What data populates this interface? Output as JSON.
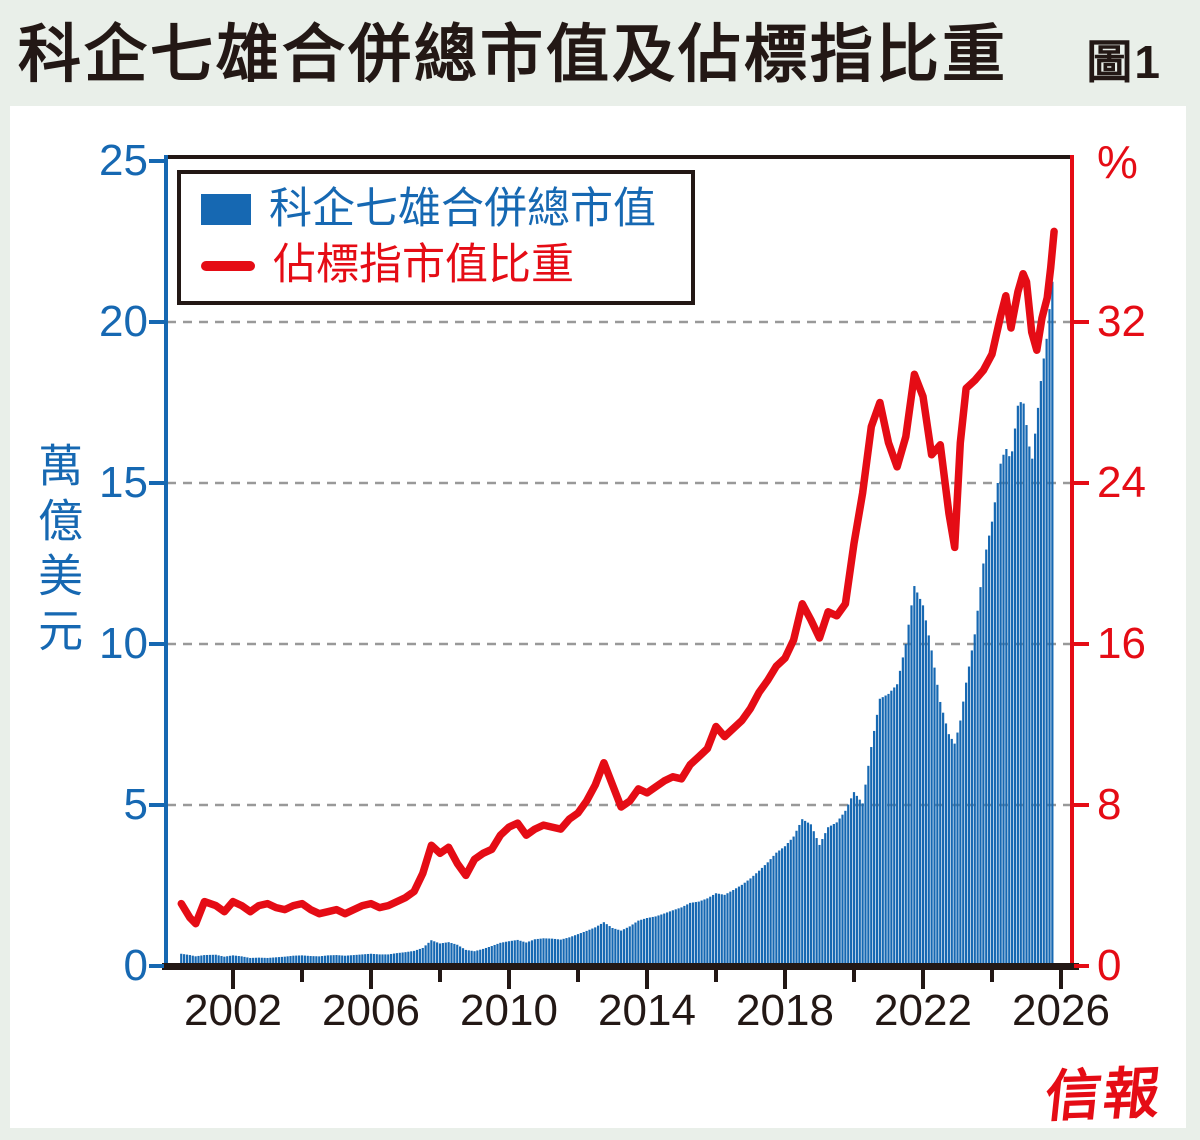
{
  "page": {
    "figure_label": "圖1",
    "brand": "信報",
    "background": "#e9efe9",
    "ink": "#231815"
  },
  "chart_data": {
    "type": "bar+line",
    "title": "科企七雄合併總市值及佔標指比重",
    "grid": "dashed-horizontal",
    "grid_color": "#999999",
    "legend_position": "top-left-inside",
    "legend": [
      {
        "label": "科企七雄合併總市值",
        "type": "bar",
        "color": "#1668b2"
      },
      {
        "label": "佔標指市值比重",
        "type": "line",
        "color": "#e50c15"
      }
    ],
    "left_axis": {
      "label": "萬億美元",
      "color": "#1668b2",
      "min": 0,
      "max": 25,
      "tick_values": [
        0,
        5,
        10,
        15,
        20,
        25
      ],
      "tick_labels": [
        "25",
        "20",
        "15",
        "10",
        "5",
        "0"
      ]
    },
    "right_axis": {
      "unit": "%",
      "color": "#e50c15",
      "min": 0,
      "max": 40,
      "tick_values": [
        0,
        8,
        16,
        24,
        32
      ],
      "tick_labels": [
        "32",
        "24",
        "16",
        "8",
        "0"
      ]
    },
    "x_axis": {
      "color": "#231815",
      "range": [
        2000.1,
        2026.8
      ],
      "tick_step_years": 2,
      "labels": [
        "2002",
        "2006",
        "2010",
        "2014",
        "2018",
        "2022",
        "2026"
      ],
      "label_years": [
        2002,
        2006,
        2010,
        2014,
        2018,
        2022,
        2026
      ]
    },
    "series": {
      "x": [
        2000.5,
        2000.75,
        2000.92,
        2001.17,
        2001.5,
        2001.75,
        2002,
        2002.25,
        2002.5,
        2002.75,
        2003,
        2003.25,
        2003.5,
        2003.75,
        2004,
        2004.25,
        2004.5,
        2004.75,
        2005,
        2005.25,
        2005.5,
        2005.75,
        2006,
        2006.25,
        2006.5,
        2006.75,
        2007,
        2007.25,
        2007.5,
        2007.75,
        2008,
        2008.25,
        2008.5,
        2008.75,
        2009,
        2009.25,
        2009.5,
        2009.75,
        2010,
        2010.25,
        2010.5,
        2010.75,
        2011,
        2011.25,
        2011.5,
        2011.75,
        2012,
        2012.25,
        2012.5,
        2012.75,
        2013,
        2013.25,
        2013.5,
        2013.75,
        2014,
        2014.25,
        2014.5,
        2014.75,
        2015,
        2015.25,
        2015.5,
        2015.75,
        2016,
        2016.25,
        2016.5,
        2016.75,
        2017,
        2017.25,
        2017.5,
        2017.75,
        2018,
        2018.25,
        2018.5,
        2018.75,
        2019,
        2019.25,
        2019.5,
        2019.75,
        2020,
        2020.25,
        2020.5,
        2020.75,
        2021,
        2021.25,
        2021.5,
        2021.75,
        2022,
        2022.25,
        2022.5,
        2022.75,
        2022.92,
        2023.08,
        2023.25,
        2023.5,
        2023.75,
        2024,
        2024.25,
        2024.4,
        2024.55,
        2024.75,
        2024.9,
        2025,
        2025.15,
        2025.3,
        2025.45,
        2025.6,
        2025.7,
        2025.8
      ],
      "market_cap_trillion_usd": [
        0.38,
        0.34,
        0.3,
        0.34,
        0.35,
        0.29,
        0.33,
        0.3,
        0.25,
        0.26,
        0.25,
        0.27,
        0.29,
        0.32,
        0.33,
        0.31,
        0.3,
        0.33,
        0.34,
        0.32,
        0.34,
        0.36,
        0.38,
        0.36,
        0.36,
        0.4,
        0.43,
        0.47,
        0.56,
        0.8,
        0.7,
        0.74,
        0.66,
        0.5,
        0.46,
        0.53,
        0.62,
        0.72,
        0.77,
        0.81,
        0.73,
        0.83,
        0.86,
        0.85,
        0.82,
        0.89,
        0.99,
        1.09,
        1.2,
        1.36,
        1.18,
        1.1,
        1.23,
        1.41,
        1.49,
        1.54,
        1.63,
        1.73,
        1.82,
        1.96,
        2.0,
        2.1,
        2.26,
        2.21,
        2.36,
        2.52,
        2.72,
        2.96,
        3.22,
        3.52,
        3.72,
        4.02,
        4.56,
        4.4,
        3.76,
        4.31,
        4.46,
        4.82,
        5.4,
        5.05,
        6.8,
        8.3,
        8.45,
        8.75,
        10.0,
        11.8,
        11.2,
        9.8,
        8.2,
        7.2,
        6.9,
        7.6,
        8.8,
        10.3,
        12.5,
        13.8,
        15.6,
        16.1,
        15.7,
        17.4,
        17.6,
        16.8,
        15.6,
        17.0,
        18.5,
        19.6,
        20.8,
        21.7
      ],
      "sp500_weight_pct": [
        3.1,
        2.4,
        2.1,
        3.2,
        3.0,
        2.7,
        3.2,
        3.0,
        2.7,
        3.0,
        3.1,
        2.9,
        2.8,
        3.0,
        3.1,
        2.8,
        2.6,
        2.7,
        2.8,
        2.6,
        2.8,
        3.0,
        3.1,
        2.9,
        3.0,
        3.2,
        3.4,
        3.7,
        4.6,
        6.0,
        5.6,
        5.9,
        5.1,
        4.5,
        5.3,
        5.6,
        5.8,
        6.5,
        6.9,
        7.1,
        6.5,
        6.8,
        7.0,
        6.9,
        6.8,
        7.3,
        7.6,
        8.2,
        9.0,
        10.1,
        9.0,
        7.9,
        8.2,
        8.8,
        8.6,
        8.9,
        9.2,
        9.4,
        9.3,
        10.0,
        10.4,
        10.8,
        11.9,
        11.4,
        11.8,
        12.2,
        12.8,
        13.6,
        14.2,
        14.9,
        15.3,
        16.2,
        18.0,
        17.2,
        16.3,
        17.6,
        17.4,
        18.0,
        21.0,
        23.5,
        26.8,
        28.0,
        26.0,
        24.8,
        26.3,
        29.4,
        28.3,
        25.4,
        25.9,
        22.5,
        20.8,
        26.0,
        28.7,
        29.1,
        29.6,
        30.4,
        32.3,
        33.3,
        31.7,
        33.5,
        34.4,
        34.0,
        31.5,
        30.6,
        32.2,
        33.2,
        34.7,
        36.5
      ]
    }
  }
}
